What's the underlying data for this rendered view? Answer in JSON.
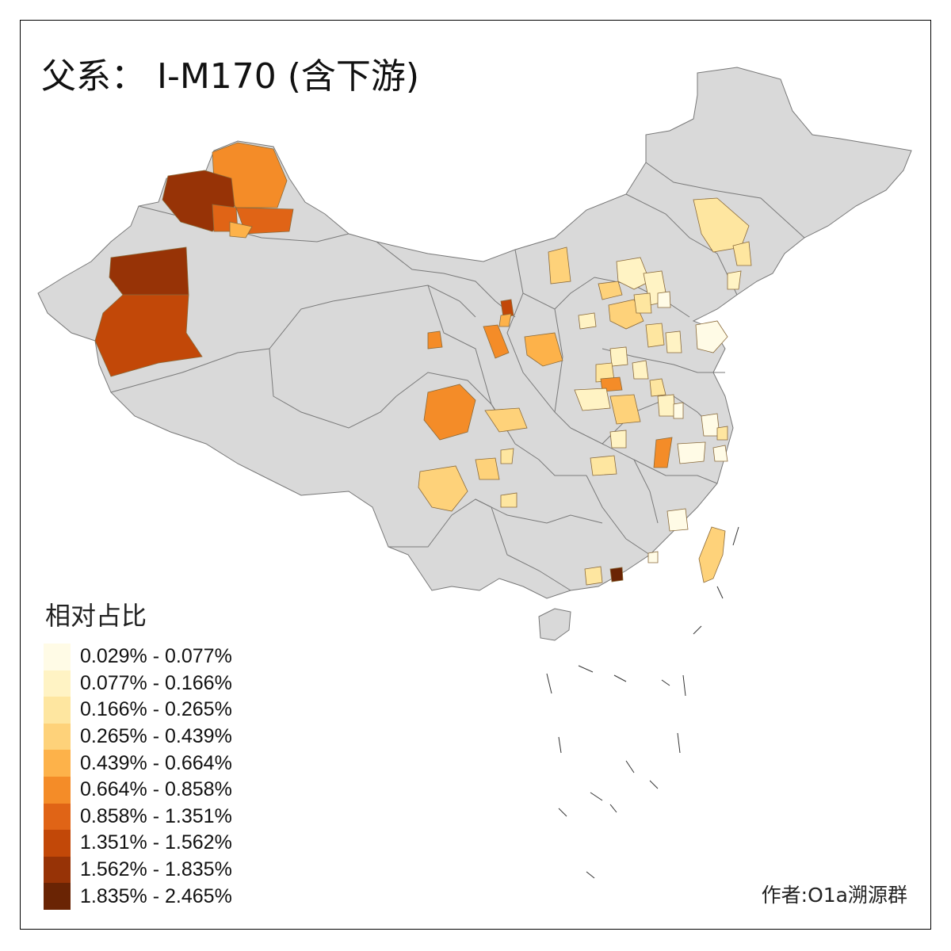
{
  "title": "父系： I-M170 (含下游)",
  "legend": {
    "title": "相对占比",
    "classes": [
      {
        "label": "0.029% - 0.077%",
        "color": "#FFFBE6"
      },
      {
        "label": "0.077% - 0.166%",
        "color": "#FFF3C4"
      },
      {
        "label": "0.166% - 0.265%",
        "color": "#FEE6A0"
      },
      {
        "label": "0.265% - 0.439%",
        "color": "#FED27A"
      },
      {
        "label": "0.439% - 0.664%",
        "color": "#FDB24A"
      },
      {
        "label": "0.664% - 0.858%",
        "color": "#F48C28"
      },
      {
        "label": "0.858% - 1.351%",
        "color": "#E06416"
      },
      {
        "label": "1.351% - 1.562%",
        "color": "#C24808"
      },
      {
        "label": "1.562% - 1.835%",
        "color": "#973306"
      },
      {
        "label": "1.835% - 2.465%",
        "color": "#6A2404"
      }
    ]
  },
  "author": "作者:O1a溯源群",
  "colors": {
    "land": "#D9D9D9",
    "border": "#7A7A7A",
    "frame": "#000000"
  }
}
